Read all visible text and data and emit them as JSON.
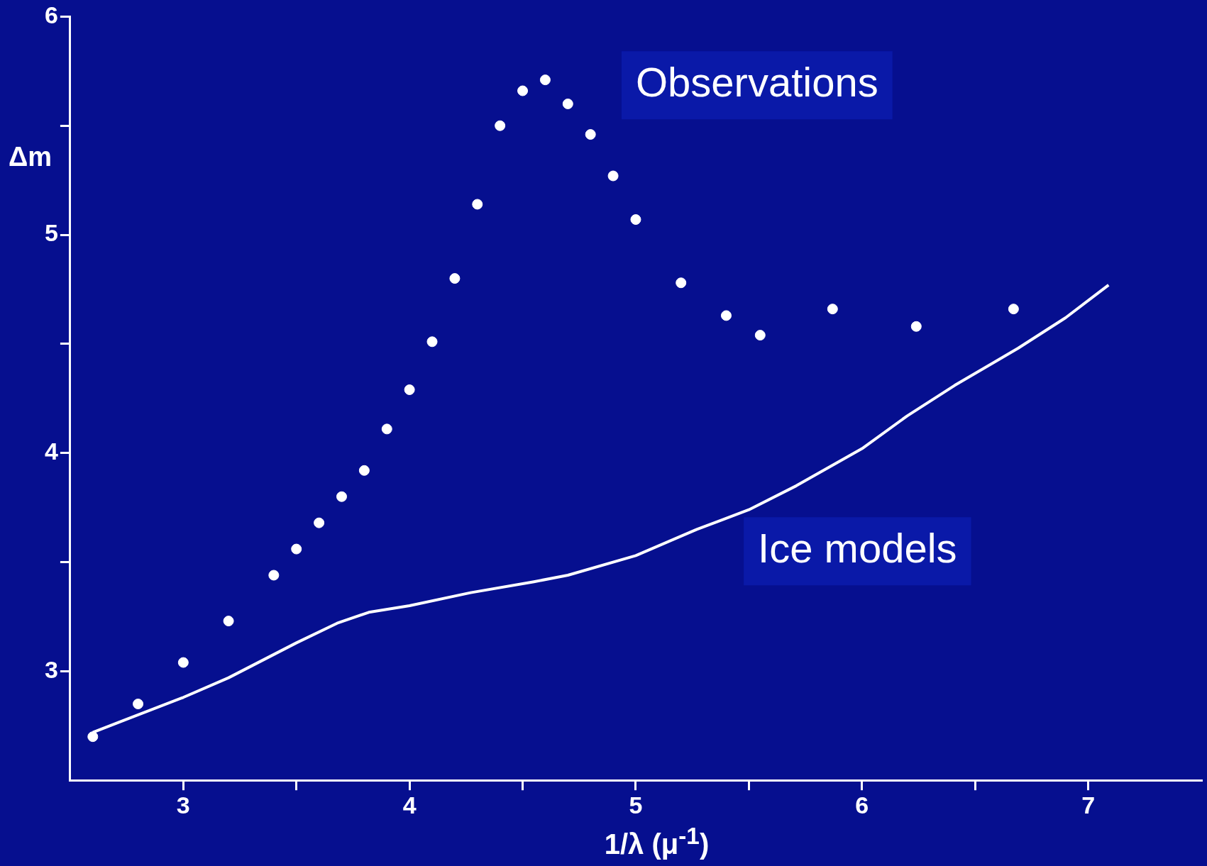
{
  "chart_data": {
    "type": "scatter",
    "xlabel": "1/λ  (μ$^{-1}$)",
    "ylabel": "Δm",
    "xlim": [
      2.5,
      7.5
    ],
    "xticks": [
      3,
      {
        "value": 3.5,
        "label": null
      },
      4,
      {
        "value": 4.5,
        "label": null
      },
      5,
      {
        "value": 5.5,
        "label": null
      },
      6,
      {
        "value": 6.5,
        "label": null
      },
      7
    ],
    "ylim": [
      2.5,
      6
    ],
    "yticks": [
      3,
      {
        "value": 3.5,
        "label": null
      },
      4,
      {
        "value": 4.5,
        "label": null
      },
      5,
      {
        "value": 5.5,
        "label": null
      },
      6
    ],
    "grid": false,
    "legend": false,
    "series": [
      {
        "name": "Observations",
        "marker": "circle",
        "color": "#ffffff",
        "x": [
          2.6,
          2.8,
          3.0,
          3.2,
          3.4,
          3.5,
          3.6,
          3.7,
          3.8,
          3.9,
          4.0,
          4.1,
          4.2,
          4.3,
          4.4,
          4.5,
          4.6,
          4.7,
          4.8,
          4.9,
          5.0,
          5.2,
          5.4,
          5.55,
          5.87,
          6.24,
          6.67
        ],
        "values": [
          2.7,
          2.85,
          3.04,
          3.23,
          3.44,
          3.56,
          3.68,
          3.8,
          3.92,
          4.11,
          4.29,
          4.51,
          4.8,
          5.14,
          5.5,
          5.66,
          5.71,
          5.6,
          5.46,
          5.27,
          5.07,
          4.78,
          4.63,
          4.54,
          4.66,
          4.58,
          4.66
        ]
      },
      {
        "name": "Ice models",
        "type": "line",
        "color": "#ffffff",
        "x": [
          2.6,
          3.0,
          3.2,
          3.5,
          3.68,
          3.82,
          4.0,
          4.27,
          4.55,
          4.7,
          5.0,
          5.27,
          5.5,
          5.71,
          6.0,
          6.2,
          6.41,
          6.69,
          6.9,
          7.09
        ],
        "values": [
          2.72,
          2.88,
          2.97,
          3.13,
          3.22,
          3.27,
          3.3,
          3.36,
          3.41,
          3.44,
          3.53,
          3.65,
          3.74,
          3.85,
          4.02,
          4.17,
          4.31,
          4.48,
          4.62,
          4.77
        ]
      }
    ]
  }
}
